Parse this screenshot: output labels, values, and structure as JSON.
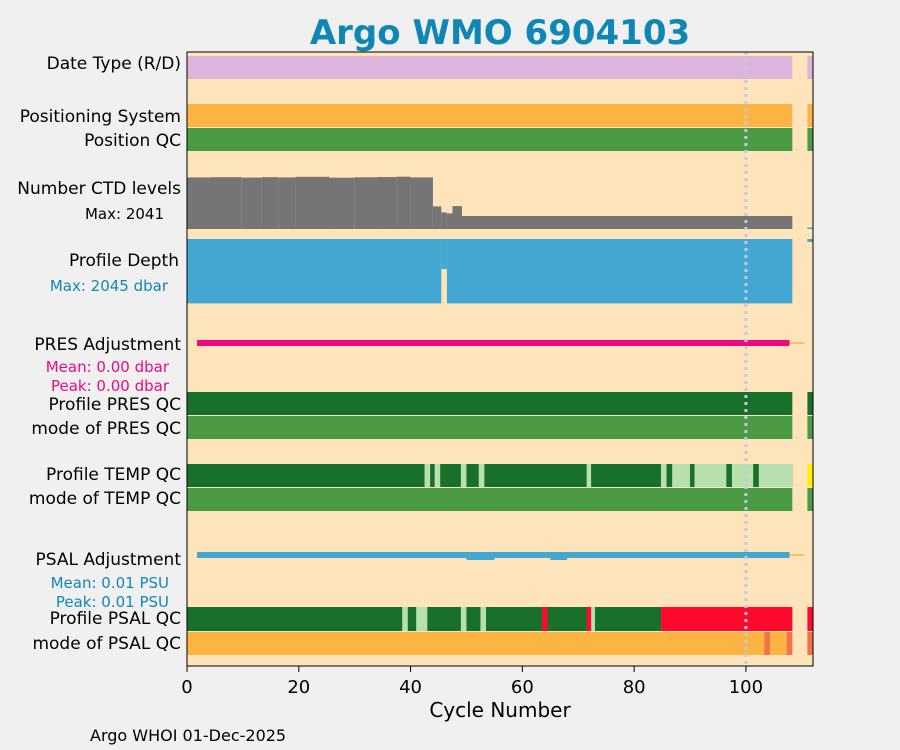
{
  "title": "Argo WMO 6904103",
  "footer": "Argo WHOI 01-Dec-2025",
  "colors": {
    "title": "#0f87b4",
    "panel_bg": "#fde4ba",
    "date_type": "#dbb6da",
    "positioning": "#fcb442",
    "qc_good": "#4a9a46",
    "qc_dark": "#17712b",
    "qc_light": "#b8dfae",
    "qc_bad": "#ff0a2e",
    "qc_probable": "#f5714a",
    "qc_yellow": "#fff200",
    "ctd": "#757575",
    "depth": "#43a8d1",
    "pres_adj": "#eb0a7f",
    "psal_adj": "#43a8d1",
    "adj_baseline": "#fcb442",
    "ref_line": "#c4c9dc"
  },
  "chart_data": {
    "type": "bar",
    "xlabel": "Cycle Number",
    "xlim": [
      0,
      112
    ],
    "xticks": [
      0,
      20,
      40,
      60,
      80,
      100
    ],
    "reference_cycle": 100,
    "rows": [
      {
        "label": "Date Type (R/D)",
        "color": "date_type",
        "segments": [
          [
            0,
            108.3
          ],
          [
            111,
            112
          ]
        ]
      },
      {
        "label": "Positioning System",
        "color": "positioning",
        "segments": [
          [
            0,
            108.3
          ],
          [
            111,
            112
          ]
        ]
      },
      {
        "label": "Position QC",
        "color": "qc_good",
        "segments": [
          [
            0,
            108.3
          ],
          [
            111,
            112
          ]
        ]
      },
      {
        "label": "Profile PRES QC",
        "color": "qc_dark",
        "segments": [
          [
            0,
            108.3
          ],
          [
            111,
            112
          ]
        ]
      },
      {
        "label": "mode of PRES QC",
        "color": "qc_good",
        "segments": [
          [
            0,
            108.3
          ],
          [
            111,
            112
          ]
        ]
      },
      {
        "label": "Profile TEMP QC",
        "color": "qc_dark",
        "segments": [
          [
            0,
            108.3
          ]
        ],
        "overlays": [
          {
            "color": "qc_light",
            "segments": [
              [
                42.5,
                43.5
              ],
              [
                44.3,
                45.3
              ],
              [
                49,
                50
              ],
              [
                52.2,
                53.2
              ],
              [
                71.5,
                72.3
              ],
              [
                84.8,
                85.8
              ],
              [
                86.8,
                90
              ],
              [
                90.8,
                96.5
              ],
              [
                97.5,
                101.3
              ],
              [
                102.3,
                108.3
              ]
            ]
          },
          {
            "color": "qc_yellow",
            "segments": [
              [
                111,
                112
              ]
            ]
          }
        ]
      },
      {
        "label": "mode of TEMP QC",
        "color": "qc_good",
        "segments": [
          [
            0,
            108.3
          ],
          [
            111,
            112
          ]
        ]
      },
      {
        "label": "Profile PSAL QC",
        "color": "qc_dark",
        "segments": [
          [
            0,
            108.3
          ]
        ],
        "overlays": [
          {
            "color": "qc_light",
            "segments": [
              [
                38.5,
                39.5
              ],
              [
                41,
                43
              ],
              [
                49,
                50
              ],
              [
                52.5,
                53.5
              ],
              [
                72.3,
                73
              ]
            ]
          },
          {
            "color": "qc_bad",
            "segments": [
              [
                63.5,
                64.5
              ],
              [
                71.5,
                72.3
              ],
              [
                84.8,
                108.3
              ],
              [
                111,
                112
              ]
            ]
          }
        ]
      },
      {
        "label": "mode of PSAL QC",
        "color": "positioning",
        "segments": [
          [
            0,
            108.3
          ],
          [
            111,
            112
          ]
        ],
        "overlays": [
          {
            "color": "qc_probable",
            "segments": [
              [
                103.3,
                104.3
              ],
              [
                107.3,
                108.3
              ],
              [
                111,
                112
              ]
            ]
          }
        ]
      }
    ],
    "ctd_levels": {
      "label": "Number CTD levels",
      "annotation": "Max: 2041",
      "max": 2041,
      "steps": [
        {
          "x": [
            0,
            4.2
          ],
          "v": 1985
        },
        {
          "x": [
            4.2,
            9.8
          ],
          "v": 1995
        },
        {
          "x": [
            9.8,
            13.4
          ],
          "v": 1980
        },
        {
          "x": [
            13.4,
            16.4
          ],
          "v": 1995
        },
        {
          "x": [
            16.4,
            19.4
          ],
          "v": 1985
        },
        {
          "x": [
            19.4,
            25.5
          ],
          "v": 2010
        },
        {
          "x": [
            25.5,
            30
          ],
          "v": 1975
        },
        {
          "x": [
            30,
            34
          ],
          "v": 1990
        },
        {
          "x": [
            34,
            37.5
          ],
          "v": 2000
        },
        {
          "x": [
            37.5,
            40
          ],
          "v": 2015
        },
        {
          "x": [
            40,
            44
          ],
          "v": 1985
        },
        {
          "x": [
            44,
            45.5
          ],
          "v": 870
        },
        {
          "x": [
            45.5,
            46.5
          ],
          "v": 640
        },
        {
          "x": [
            46.5,
            47.5
          ],
          "v": 600
        },
        {
          "x": [
            47.5,
            49.2
          ],
          "v": 880
        },
        {
          "x": [
            49.2,
            108.3
          ],
          "v": 500
        }
      ],
      "after_gap": {
        "x": [
          111,
          112
        ],
        "v": 20
      }
    },
    "profile_depth": {
      "label": "Profile Depth",
      "annotation": "Max: 2045 dbar",
      "max": 2045,
      "typical_depth": 1995,
      "gap": [
        45.5,
        46.5
      ],
      "x_range": [
        0,
        108.3
      ],
      "after_gap": {
        "x": [
          111,
          112
        ],
        "v": 90
      }
    },
    "pres_adjustment": {
      "label": "PRES Adjustment",
      "mean_text": "Mean: 0.00 dbar",
      "peak_text": "Peak: 0.00 dbar",
      "range": [
        1.8,
        107.8
      ],
      "value": 0.0
    },
    "psal_adjustment": {
      "label": "PSAL Adjustment",
      "mean_text": "Mean: 0.01 PSU",
      "peak_text": "Peak: 0.01 PSU",
      "range": [
        1.8,
        107.8
      ],
      "value": 0.01
    }
  }
}
